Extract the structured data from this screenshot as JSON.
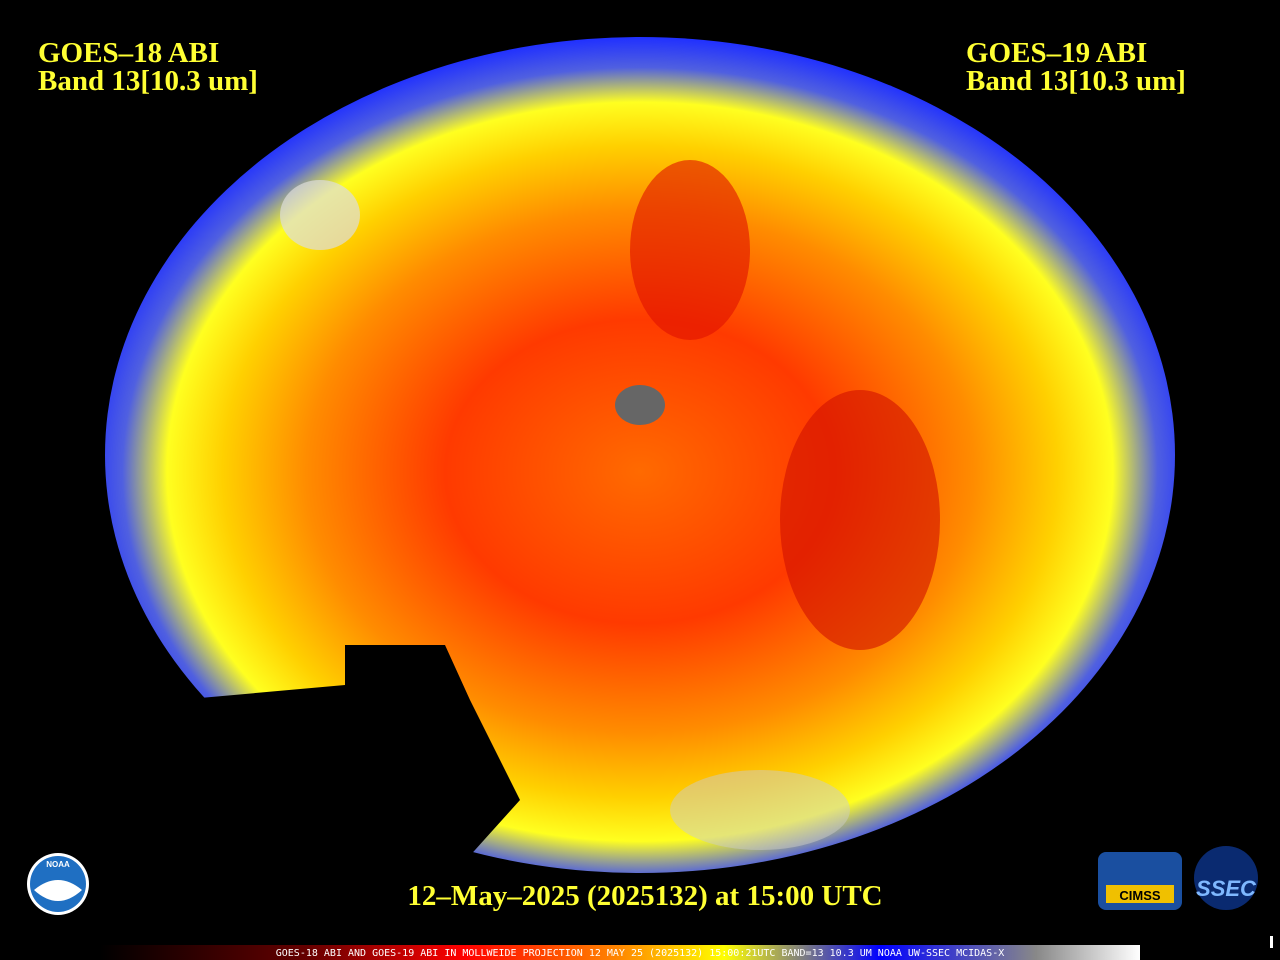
{
  "header": {
    "left": {
      "satellite": "GOES–18 ABI",
      "band": "Band 13[10.3 um]"
    },
    "right": {
      "satellite": "GOES–19 ABI",
      "band": "Band 13[10.3 um]"
    }
  },
  "timestamp": "12–May–2025 (2025132) at 15:00 UTC",
  "footer": "GOES-18 ABI AND GOES-19 ABI IN MOLLWEIDE PROJECTION 12 MAY 25 (2025132) 15:00:21UTC BAND=13 10.3 UM NOAA UW-SSEC MCIDAS-X",
  "logos": {
    "noaa": "NOAA",
    "cimss": "CIMSS",
    "ssec": "SSEC"
  }
}
